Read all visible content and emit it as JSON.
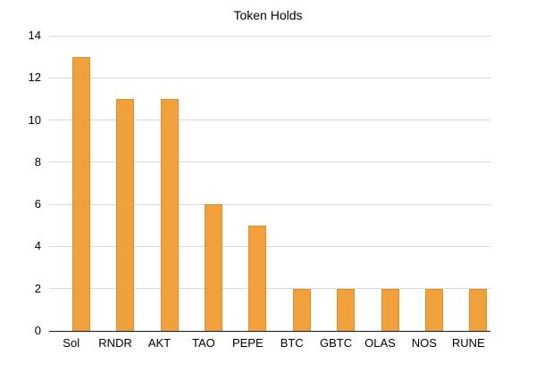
{
  "chart_data": {
    "type": "bar",
    "title": "Token Holds",
    "categories": [
      "Sol",
      "RNDR",
      "AKT",
      "TAO",
      "PEPE",
      "BTC",
      "GBTC",
      "OLAS",
      "NOS",
      "RUNE"
    ],
    "values": [
      13,
      11,
      11,
      6,
      5,
      2,
      2,
      2,
      2,
      2
    ],
    "xlabel": "",
    "ylabel": "",
    "ylim": [
      0,
      14
    ],
    "ytick_step": 2,
    "ytick_labels": [
      "0",
      "2",
      "4",
      "6",
      "8",
      "10",
      "12",
      "14"
    ],
    "grid": true,
    "legend": false,
    "bar_color": "#F0A13C",
    "bar_border_color": "#DF8E2A",
    "gridline_color": "#D9D9D9",
    "axis_color": "#1A1A1A",
    "text_color": "#000000",
    "background_color": "#FFFFFF"
  }
}
